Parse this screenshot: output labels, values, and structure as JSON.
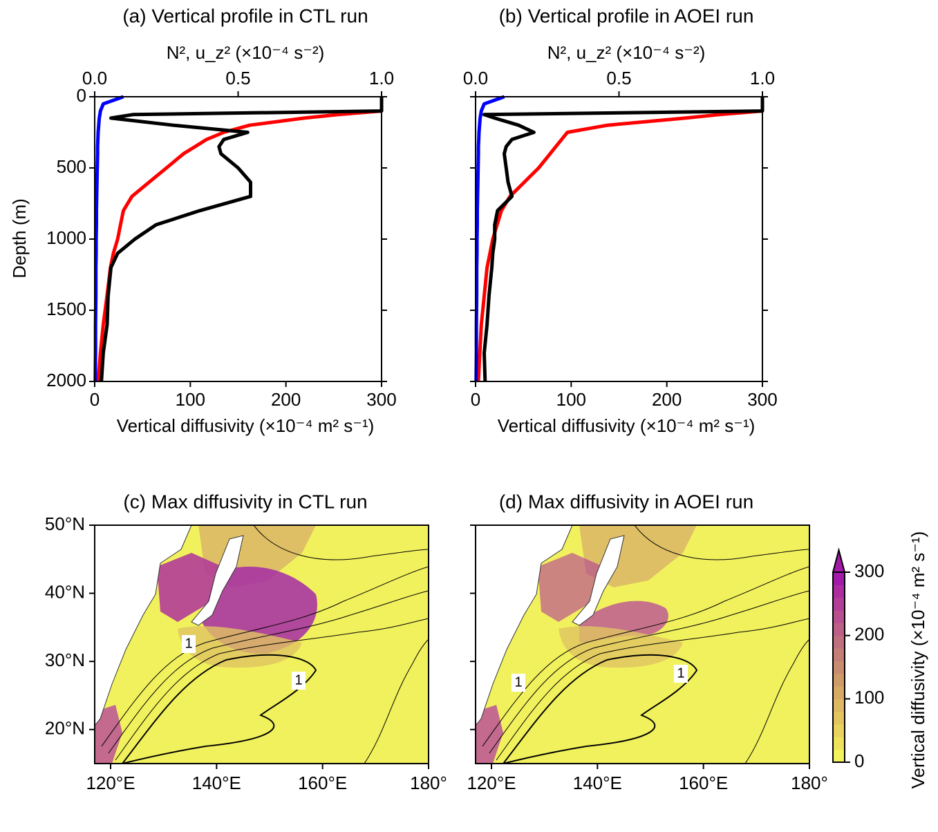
{
  "chart_data": [
    {
      "type": "profile",
      "title": "(a) Vertical profile in CTL run",
      "xlabel": "Vertical diffusivity (×10⁻⁴ m² s⁻¹)",
      "x2label": "N², u_z² (×10⁻⁴ s⁻²)",
      "ylabel": "Depth (m)",
      "xlim": [
        0,
        300
      ],
      "xticks": [
        0,
        100,
        200,
        300
      ],
      "x2lim": [
        0,
        1
      ],
      "x2ticks": [
        {
          "value": 0,
          "label": "0.0"
        },
        {
          "value": 0.5,
          "label": "0.5"
        },
        {
          "value": 1,
          "label": "1.0"
        }
      ],
      "ylim": [
        2000,
        0
      ],
      "yticks": [
        0,
        500,
        1000,
        1500,
        2000
      ],
      "y": [
        0,
        50,
        100,
        125,
        150,
        200,
        250,
        300,
        350,
        400,
        500,
        600,
        700,
        800,
        900,
        1000,
        1100,
        1200,
        1400,
        1600,
        1800,
        2000
      ],
      "series": [
        {
          "color": "#ff0000",
          "axis": "x2",
          "values": [
            null,
            null,
            1.0,
            0.85,
            0.73,
            0.54,
            0.45,
            0.39,
            0.35,
            0.31,
            0.25,
            0.19,
            0.13,
            0.1,
            0.09,
            0.08,
            0.065,
            0.055,
            0.043,
            0.03,
            0.02,
            0.012
          ]
        },
        {
          "color": "#0000ff",
          "axis": "x2",
          "values": [
            0.1,
            0.03,
            0.02,
            0.018,
            0.016,
            0.014,
            0.012,
            0.011,
            0.01,
            0.01,
            0.009,
            0.008,
            0.007,
            0.006,
            0.006,
            0.005,
            0.005,
            0.004,
            0.004,
            0.003,
            0.003,
            0.002
          ]
        },
        {
          "color": "#000000",
          "axis": "x",
          "values": [
            300,
            300,
            300,
            40,
            17,
            82,
            160,
            135,
            130,
            132,
            150,
            163,
            163,
            110,
            64,
            42,
            24,
            17,
            14,
            13,
            9,
            7
          ]
        }
      ]
    },
    {
      "type": "profile",
      "title": "(b) Vertical profile in AOEI run",
      "xlabel": "Vertical diffusivity (×10⁻⁴ m² s⁻¹)",
      "x2label": "N², u_z² (×10⁻⁴ s⁻²)",
      "xlim": [
        0,
        300
      ],
      "xticks": [
        0,
        100,
        200,
        300
      ],
      "x2lim": [
        0,
        1
      ],
      "x2ticks": [
        {
          "value": 0,
          "label": "0.0"
        },
        {
          "value": 0.5,
          "label": "0.5"
        },
        {
          "value": 1,
          "label": "1.0"
        }
      ],
      "ylim": [
        2000,
        0
      ],
      "y": [
        0,
        50,
        100,
        125,
        150,
        200,
        250,
        300,
        350,
        400,
        500,
        600,
        700,
        800,
        900,
        1000,
        1100,
        1200,
        1400,
        1600,
        1800,
        2000
      ],
      "series": [
        {
          "color": "#ff0000",
          "axis": "x2",
          "values": [
            null,
            null,
            1.0,
            0.85,
            0.73,
            0.46,
            0.32,
            0.3,
            0.28,
            0.26,
            0.22,
            0.17,
            0.12,
            0.09,
            0.075,
            0.06,
            0.05,
            0.04,
            0.03,
            0.02,
            0.015,
            0.01
          ]
        },
        {
          "color": "#0000ff",
          "axis": "x2",
          "values": [
            0.1,
            0.03,
            0.02,
            0.018,
            0.016,
            0.014,
            0.012,
            0.011,
            0.01,
            0.01,
            0.009,
            0.008,
            0.007,
            0.006,
            0.006,
            0.005,
            0.005,
            0.004,
            0.004,
            0.003,
            0.003,
            0.002
          ]
        },
        {
          "color": "#000000",
          "axis": "x",
          "values": [
            300,
            300,
            300,
            9,
            20,
            45,
            61,
            38,
            32,
            30,
            32,
            34,
            38,
            23,
            20,
            20,
            18,
            17,
            14,
            12,
            9,
            10
          ]
        }
      ]
    },
    {
      "type": "map",
      "title": "(c) Max diffusivity in CTL run",
      "intensity": "high",
      "xlim": [
        117,
        180
      ],
      "xticks": [
        {
          "value": 120,
          "label": "120°E"
        },
        {
          "value": 140,
          "label": "140°E"
        },
        {
          "value": 160,
          "label": "160°E"
        },
        {
          "value": 180,
          "label": "180°"
        }
      ],
      "ylim": [
        15,
        50
      ],
      "yticks": [
        {
          "value": 20,
          "label": "20°N"
        },
        {
          "value": 30,
          "label": "30°N"
        },
        {
          "value": 40,
          "label": "40°N"
        },
        {
          "value": 50,
          "label": "50°N"
        }
      ],
      "annotations": [
        "1",
        "1"
      ]
    },
    {
      "type": "map",
      "title": "(d) Max diffusivity in AOEI run",
      "intensity": "low",
      "xlim": [
        117,
        180
      ],
      "xticks": [
        {
          "value": 120,
          "label": "120°E"
        },
        {
          "value": 140,
          "label": "140°E"
        },
        {
          "value": 160,
          "label": "160°E"
        },
        {
          "value": 180,
          "label": "180°"
        }
      ],
      "ylim": [
        15,
        50
      ],
      "annotations": [
        "1",
        "1"
      ],
      "colorbar": {
        "label": "Vertical diffusivity (×10⁻⁴ m² s⁻¹)",
        "lim": [
          0,
          300
        ],
        "ticks": [
          0,
          100,
          200,
          300
        ],
        "colors": [
          "#f2f25a",
          "#eee25c",
          "#e9d35e",
          "#e3c560",
          "#ddb762",
          "#d6a964",
          "#cf9b68",
          "#c98c6e",
          "#c47e76",
          "#c06f7e",
          "#bc6087",
          "#b84f90",
          "#b33e99",
          "#ad2da1",
          "#a31aa8"
        ]
      }
    }
  ]
}
